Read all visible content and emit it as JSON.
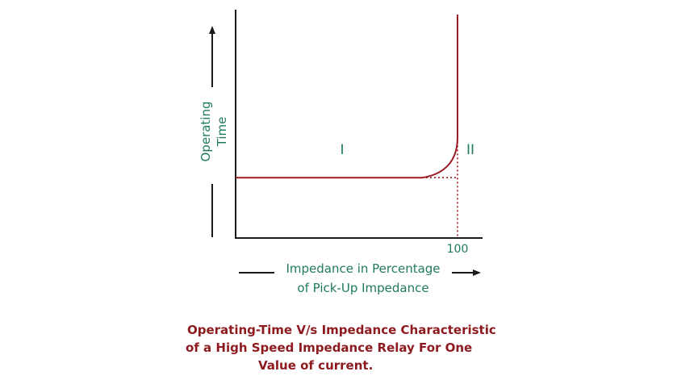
{
  "chart_data": {
    "type": "line",
    "title": "",
    "xlabel": [
      "Impedance in Percentage",
      "of Pick-Up Impedance"
    ],
    "ylabel": [
      "Operating",
      "Time"
    ],
    "x_ticks": [
      "100"
    ],
    "regions": [
      "I",
      "II"
    ],
    "grid": false,
    "legend": "none",
    "series": [
      {
        "x": [
          0,
          84,
          100,
          100
        ],
        "y": [
          0.27,
          0.27,
          0.45,
          1.0
        ]
      }
    ],
    "colors": {
      "curve": "#9b1c24",
      "axis_text": "#1e7a5a",
      "axes": "#1a1a1a",
      "caption": "#8c1a1f"
    }
  },
  "caption": {
    "line1": "Operating-Time V/s Impedance Characteristic",
    "line2": "of a High Speed Impedance Relay For One",
    "line3": "Value of current."
  }
}
